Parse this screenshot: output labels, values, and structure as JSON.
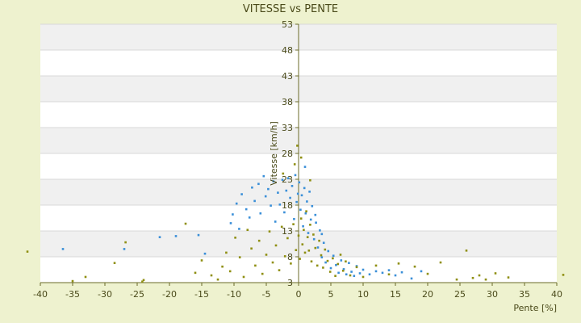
{
  "chart_data": {
    "type": "scatter",
    "title": "VITESSE vs PENTE",
    "xlabel": "Pente [%]",
    "ylabel": "Vitesse [km/h]",
    "xlim": [
      -40,
      40
    ],
    "ylim": [
      3,
      53
    ],
    "x_ticks": [
      -40,
      -35,
      -30,
      -25,
      -20,
      -15,
      -10,
      -5,
      0,
      5,
      10,
      15,
      20,
      25,
      30,
      35,
      40
    ],
    "y_ticks": [
      3,
      8,
      13,
      18,
      23,
      28,
      33,
      38,
      43,
      48,
      53
    ],
    "grid": true,
    "legend": "none",
    "colors": {
      "background": "#eef2cf",
      "plot_band_light": "#ffffff",
      "plot_band_dark": "#f0f0f0",
      "axis": "#6b6b2a",
      "series_blue": "#3a8fd8",
      "series_olive": "#8f8f12"
    },
    "series": [
      {
        "color": "#3a8fd8",
        "points": [
          [
            -36.5,
            9.5
          ],
          [
            -27,
            9.5
          ],
          [
            -21.5,
            11.8
          ],
          [
            -19,
            12
          ],
          [
            -15.5,
            12.2
          ],
          [
            -14.5,
            8.6
          ],
          [
            -10.5,
            14.5
          ],
          [
            -10.2,
            16.2
          ],
          [
            -9.6,
            18.3
          ],
          [
            -9.2,
            13.4
          ],
          [
            -8.8,
            20.1
          ],
          [
            -8.1,
            17.2
          ],
          [
            -7.6,
            15.6
          ],
          [
            -7.2,
            21.4
          ],
          [
            -6.8,
            18.8
          ],
          [
            -6.2,
            22.1
          ],
          [
            -5.9,
            16.4
          ],
          [
            -5.4,
            23.6
          ],
          [
            -5.1,
            19.7
          ],
          [
            -4.7,
            21.1
          ],
          [
            -4.3,
            17.9
          ],
          [
            -3.9,
            22.6
          ],
          [
            -3.6,
            14.8
          ],
          [
            -3.2,
            20.4
          ],
          [
            -2.9,
            18.1
          ],
          [
            -2.5,
            22.9
          ],
          [
            -2.2,
            16.6
          ],
          [
            -1.9,
            20.8
          ],
          [
            -1.6,
            23.2
          ],
          [
            -1.3,
            19.4
          ],
          [
            -1.0,
            21.7
          ],
          [
            -0.7,
            15.3
          ],
          [
            -0.5,
            23.8
          ],
          [
            -0.3,
            18.6
          ],
          [
            -0.1,
            20.2
          ],
          [
            0.1,
            22.4
          ],
          [
            0.3,
            17.1
          ],
          [
            0.5,
            19.9
          ],
          [
            0.7,
            13.9
          ],
          [
            0.9,
            21.3
          ],
          [
            1.1,
            16.4
          ],
          [
            1.3,
            18.7
          ],
          [
            1.5,
            12.6
          ],
          [
            1.7,
            20.6
          ],
          [
            1.9,
            15.2
          ],
          [
            2.1,
            17.8
          ],
          [
            2.4,
            11.4
          ],
          [
            2.7,
            14.6
          ],
          [
            3.0,
            9.8
          ],
          [
            3.3,
            13.1
          ],
          [
            3.6,
            7.9
          ],
          [
            3.9,
            10.7
          ],
          [
            4.2,
            6.9
          ],
          [
            4.6,
            9.1
          ],
          [
            5.0,
            5.8
          ],
          [
            5.4,
            8.2
          ],
          [
            5.8,
            6.4
          ],
          [
            6.2,
            4.9
          ],
          [
            6.6,
            7.3
          ],
          [
            7.0,
            5.6
          ],
          [
            7.4,
            4.6
          ],
          [
            7.8,
            6.8
          ],
          [
            8.2,
            5.1
          ],
          [
            8.6,
            4.3
          ],
          [
            9.0,
            6.2
          ],
          [
            9.5,
            4.8
          ],
          [
            10.0,
            5.5
          ],
          [
            11.0,
            4.6
          ],
          [
            12.0,
            5.2
          ],
          [
            13.0,
            4.9
          ],
          [
            14.0,
            5.4
          ],
          [
            15.0,
            4.4
          ],
          [
            16.0,
            5.0
          ],
          [
            17.5,
            3.8
          ],
          [
            19.0,
            5.2
          ],
          [
            3.6,
            12.4
          ],
          [
            2.6,
            16.1
          ],
          [
            1.0,
            25.4
          ]
        ]
      },
      {
        "color": "#8f8f12",
        "points": [
          [
            -42,
            9.0
          ],
          [
            -35,
            3.3
          ],
          [
            -33,
            4.1
          ],
          [
            -28.5,
            6.8
          ],
          [
            -26.8,
            10.8
          ],
          [
            -24.2,
            3.2
          ],
          [
            -24,
            3.5
          ],
          [
            -17.5,
            14.4
          ],
          [
            -16,
            4.9
          ],
          [
            -15,
            7.3
          ],
          [
            -13.5,
            4.4
          ],
          [
            -12.5,
            3.6
          ],
          [
            -11.8,
            6.1
          ],
          [
            -11.2,
            8.8
          ],
          [
            -10.6,
            5.2
          ],
          [
            -9.8,
            11.7
          ],
          [
            -9.1,
            7.9
          ],
          [
            -8.5,
            4.1
          ],
          [
            -7.9,
            13.2
          ],
          [
            -7.3,
            9.6
          ],
          [
            -6.7,
            6.3
          ],
          [
            -6.1,
            11.1
          ],
          [
            -5.6,
            4.7
          ],
          [
            -5.0,
            8.4
          ],
          [
            -4.5,
            12.9
          ],
          [
            -4.0,
            6.9
          ],
          [
            -3.5,
            10.2
          ],
          [
            -3.0,
            5.4
          ],
          [
            -2.6,
            13.8
          ],
          [
            -2.1,
            8.1
          ],
          [
            -1.7,
            11.6
          ],
          [
            -1.2,
            6.7
          ],
          [
            -0.8,
            14.3
          ],
          [
            -0.4,
            9.3
          ],
          [
            0.0,
            12.1
          ],
          [
            0.2,
            7.6
          ],
          [
            0.4,
            15.4
          ],
          [
            0.6,
            10.4
          ],
          [
            0.8,
            13.2
          ],
          [
            1.0,
            8.8
          ],
          [
            1.2,
            16.8
          ],
          [
            1.4,
            11.8
          ],
          [
            1.6,
            9.2
          ],
          [
            1.8,
            14.2
          ],
          [
            2.0,
            7.1
          ],
          [
            2.3,
            12.3
          ],
          [
            2.6,
            9.7
          ],
          [
            2.9,
            6.3
          ],
          [
            3.2,
            11.1
          ],
          [
            3.5,
            8.3
          ],
          [
            3.8,
            5.9
          ],
          [
            4.1,
            9.4
          ],
          [
            4.5,
            7.2
          ],
          [
            4.9,
            5.1
          ],
          [
            5.3,
            7.7
          ],
          [
            5.7,
            4.3
          ],
          [
            6.1,
            6.6
          ],
          [
            6.5,
            8.4
          ],
          [
            6.9,
            5.3
          ],
          [
            7.3,
            7.1
          ],
          [
            8.0,
            4.4
          ],
          [
            9.0,
            6.0
          ],
          [
            10.0,
            4.1
          ],
          [
            12.0,
            6.3
          ],
          [
            14.0,
            4.6
          ],
          [
            15.5,
            6.7
          ],
          [
            18.0,
            6.1
          ],
          [
            20.0,
            4.7
          ],
          [
            22.0,
            6.9
          ],
          [
            24.5,
            3.6
          ],
          [
            26.0,
            9.2
          ],
          [
            27.0,
            3.9
          ],
          [
            28.0,
            4.4
          ],
          [
            29.0,
            3.6
          ],
          [
            30.5,
            4.8
          ],
          [
            32.5,
            4.0
          ],
          [
            41.0,
            4.5
          ],
          [
            -0.2,
            29.5
          ],
          [
            0.4,
            27.2
          ],
          [
            -0.6,
            25.9
          ],
          [
            1.8,
            22.8
          ],
          [
            -2.4,
            24.1
          ]
        ]
      }
    ]
  }
}
